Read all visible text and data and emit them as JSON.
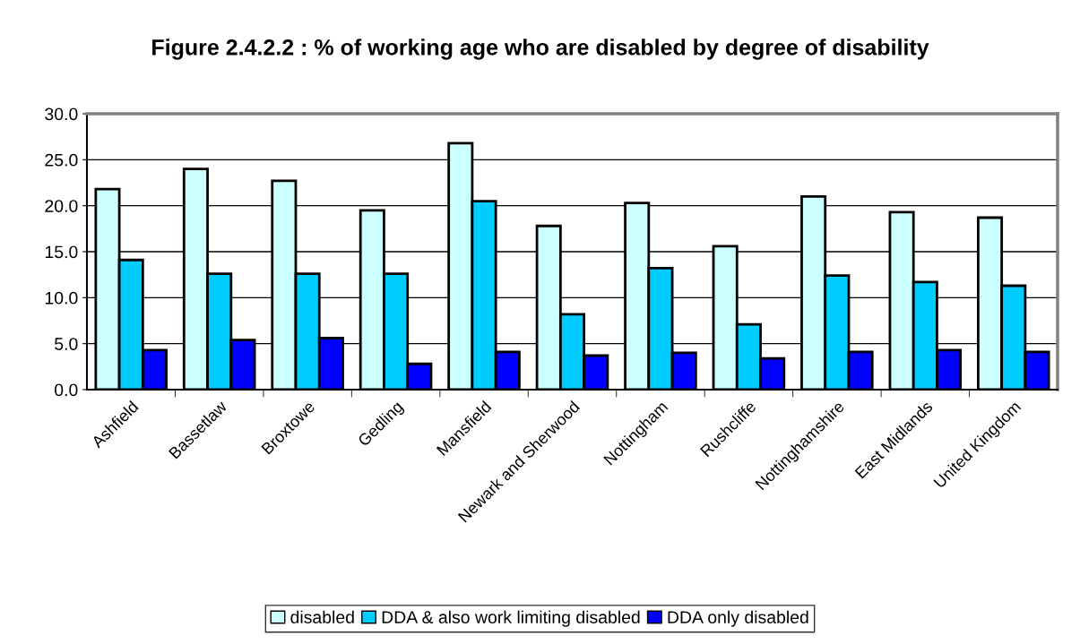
{
  "chart_data": {
    "type": "bar",
    "title": "Figure 2.4.2.2 : % of working age who are disabled by degree of disability",
    "categories": [
      "Ashfield",
      "Bassetlaw",
      "Broxtowe",
      "Gedling",
      "Mansfield",
      "Newark and Sherwood",
      "Nottingham",
      "Rushcliffe",
      "Nottinghamshire",
      "East Midlands",
      "United Kingdom"
    ],
    "series": [
      {
        "name": "disabled",
        "color": "#ccffff",
        "values": [
          21.8,
          24.0,
          22.7,
          19.5,
          26.8,
          17.8,
          20.3,
          15.6,
          21.0,
          19.3,
          18.7
        ]
      },
      {
        "name": "DDA & also work limiting disabled",
        "color": "#00ccff",
        "values": [
          14.1,
          12.6,
          12.6,
          12.6,
          20.5,
          8.2,
          13.2,
          7.1,
          12.4,
          11.7,
          11.3
        ]
      },
      {
        "name": "DDA only disabled",
        "color": "#0000ff",
        "values": [
          4.3,
          5.4,
          5.6,
          2.8,
          4.1,
          3.7,
          4.0,
          3.4,
          4.1,
          4.3,
          4.1
        ]
      }
    ],
    "ylim": [
      0,
      30
    ],
    "yticks": [
      {
        "value": 0,
        "label": "0.0"
      },
      {
        "value": 5,
        "label": "5.0"
      },
      {
        "value": 10,
        "label": "10.0"
      },
      {
        "value": 15,
        "label": "15.0"
      },
      {
        "value": 20,
        "label": "20.0"
      },
      {
        "value": 25,
        "label": "25.0"
      },
      {
        "value": 30,
        "label": "30.0"
      }
    ],
    "grid": "y",
    "legend": "bottom"
  }
}
